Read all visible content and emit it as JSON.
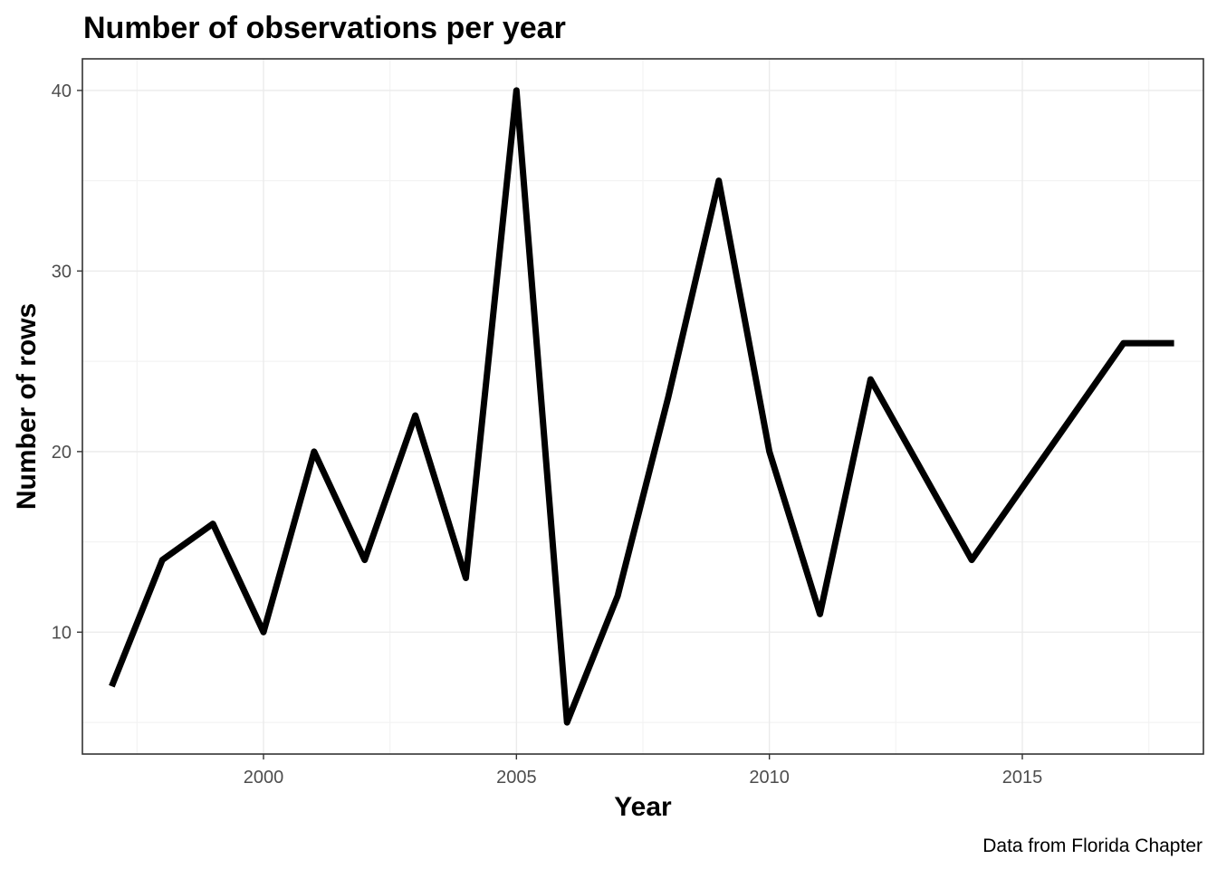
{
  "chart_data": {
    "type": "line",
    "title": "Number of observations per year",
    "xlabel": "Year",
    "ylabel": "Number of rows",
    "caption": "Data from Florida Chapter",
    "x": [
      1997,
      1998,
      1999,
      2000,
      2001,
      2002,
      2003,
      2004,
      2005,
      2006,
      2007,
      2008,
      2009,
      2010,
      2011,
      2012,
      2013,
      2014,
      2015,
      2016,
      2017,
      2018
    ],
    "series": [
      {
        "values": [
          7,
          14,
          16,
          10,
          20,
          14,
          22,
          13,
          40,
          5,
          12,
          23,
          35,
          20,
          11,
          24,
          19,
          14,
          18,
          22,
          26,
          26
        ],
        "color": "#000000"
      }
    ],
    "xlim": [
      1996.42,
      2018.58
    ],
    "ylim": [
      3.25,
      41.75
    ],
    "x_ticks": [
      "2000",
      "2005",
      "2010",
      "2015"
    ],
    "y_ticks": [
      "10",
      "20",
      "30",
      "40"
    ],
    "grid": true,
    "legend": "none"
  }
}
